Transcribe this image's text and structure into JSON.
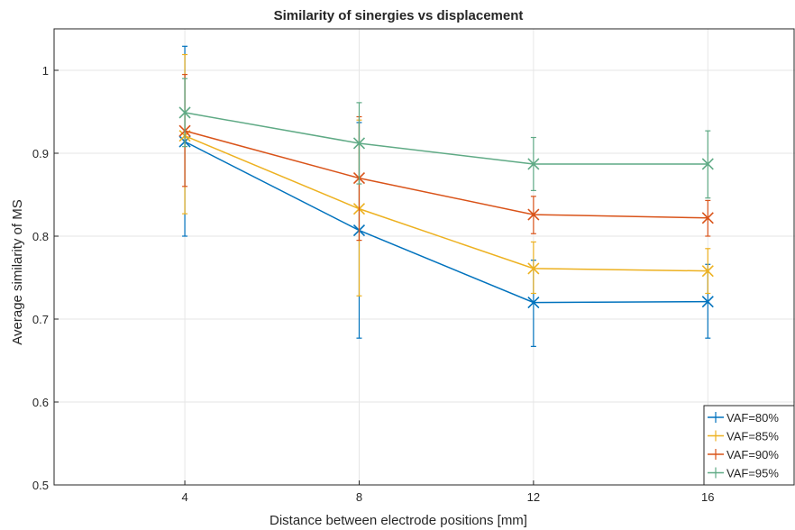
{
  "chart_data": {
    "type": "line",
    "title": "Similarity of sinergies vs displacement",
    "xlabel": "Distance between electrode positions [mm]",
    "ylabel": "Average similarity of MS",
    "x": [
      4,
      8,
      12,
      16
    ],
    "xlim": [
      1,
      18
    ],
    "ylim": [
      0.5,
      1.05
    ],
    "xticks": [
      "4",
      "8",
      "12",
      "16"
    ],
    "yticks": [
      "0.5",
      "0.6",
      "0.7",
      "0.8",
      "0.9",
      "1"
    ],
    "grid": true,
    "legend_position": "bottom-right",
    "series": [
      {
        "name": "VAF=80%",
        "color": "#0072BD",
        "values": [
          0.914,
          0.807,
          0.72,
          0.721
        ],
        "err_low": [
          0.8,
          0.677,
          0.667,
          0.677
        ],
        "err_high": [
          1.029,
          0.937,
          0.771,
          0.766
        ]
      },
      {
        "name": "VAF=85%",
        "color": "#EDB120",
        "values": [
          0.921,
          0.833,
          0.761,
          0.758
        ],
        "err_low": [
          0.827,
          0.728,
          0.731,
          0.731
        ],
        "err_high": [
          1.019,
          0.94,
          0.793,
          0.785
        ]
      },
      {
        "name": "VAF=90%",
        "color": "#D95319",
        "values": [
          0.927,
          0.87,
          0.826,
          0.822
        ],
        "err_low": [
          0.86,
          0.795,
          0.803,
          0.8
        ],
        "err_high": [
          0.995,
          0.944,
          0.848,
          0.843
        ]
      },
      {
        "name": "VAF=95%",
        "color": "#5FAA85",
        "values": [
          0.949,
          0.912,
          0.887,
          0.887
        ],
        "err_low": [
          0.908,
          0.863,
          0.855,
          0.846
        ],
        "err_high": [
          0.99,
          0.961,
          0.919,
          0.927
        ]
      }
    ]
  }
}
